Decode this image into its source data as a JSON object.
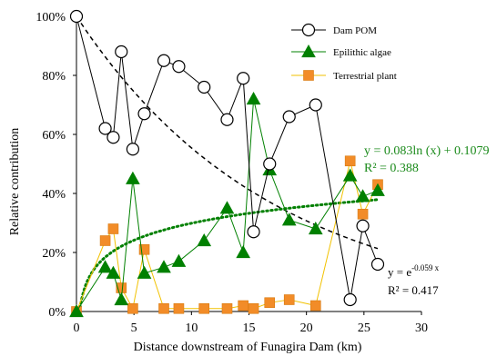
{
  "chart_data": {
    "type": "scatter",
    "xlabel": "Distance downstream of Funagira Dam (km)",
    "ylabel": "Relative contribution",
    "xlim": [
      0,
      30
    ],
    "ylim": [
      0,
      100
    ],
    "x_ticks": [
      "0",
      "5",
      "10",
      "15",
      "20",
      "25",
      "30"
    ],
    "y_ticks": [
      "0%",
      "20%",
      "40%",
      "60%",
      "80%",
      "100%"
    ],
    "legend_position": "top-right",
    "series": [
      {
        "name": "Dam POM",
        "marker": "circle",
        "color": "#000000",
        "x": [
          0,
          2.5,
          3.2,
          3.9,
          4.9,
          5.9,
          7.6,
          8.9,
          11.1,
          13.1,
          14.5,
          15.4,
          16.8,
          18.5,
          20.8,
          23.8,
          24.9,
          26.2
        ],
        "y": [
          100,
          62,
          59,
          88,
          55,
          67,
          85,
          83,
          76,
          65,
          79,
          27,
          50,
          66,
          70,
          4,
          29,
          16
        ]
      },
      {
        "name": "Epilithic algae",
        "marker": "triangle",
        "color": "#008000",
        "x": [
          0,
          2.5,
          3.2,
          3.9,
          4.9,
          5.9,
          7.6,
          8.9,
          11.1,
          13.1,
          14.5,
          15.4,
          16.8,
          18.5,
          20.8,
          23.8,
          24.9,
          26.2
        ],
        "y": [
          0,
          15,
          13,
          4,
          45,
          13,
          15,
          17,
          24,
          35,
          20,
          72,
          48,
          31,
          28,
          46,
          39,
          41
        ]
      },
      {
        "name": "Terrestrial plant",
        "marker": "square",
        "color": "#f28c28",
        "x": [
          0,
          2.5,
          3.2,
          3.9,
          4.9,
          5.9,
          7.6,
          8.9,
          11.1,
          13.1,
          14.5,
          15.4,
          16.8,
          18.5,
          20.8,
          23.8,
          24.9,
          26.2
        ],
        "y": [
          0,
          24,
          28,
          8,
          1,
          21,
          1,
          1,
          1,
          1,
          2,
          1,
          3,
          4,
          2,
          51,
          33,
          43
        ]
      }
    ],
    "trendlines": [
      {
        "name": "exponential",
        "style": "dashed",
        "color": "#000000",
        "equation_prefix": "y = e",
        "equation_exponent": "-0.059 x",
        "r2": "R² = 0.417",
        "a": -0.059,
        "x_range": [
          0,
          26.2
        ]
      },
      {
        "name": "logarithmic",
        "style": "dotted",
        "color": "#008000",
        "equation": "y = 0.083ln (x) + 0.1079",
        "r2": "R² = 0.388",
        "a": 0.083,
        "b": 0.1079,
        "x_range": [
          0.2,
          26.2
        ]
      }
    ]
  }
}
